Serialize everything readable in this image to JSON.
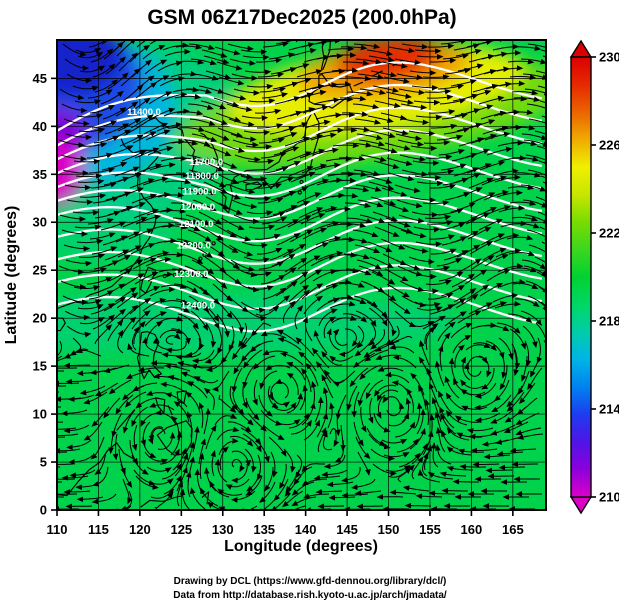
{
  "chart_data": {
    "type": "heatmap",
    "title": "GSM 06Z17Dec2025 (200.0hPa)",
    "xlabel": "Longitude (degrees)",
    "ylabel": "Latitude  (degrees)",
    "xlim": [
      110,
      169
    ],
    "ylim": [
      0,
      49
    ],
    "x_ticks": [
      110,
      115,
      120,
      125,
      130,
      135,
      140,
      145,
      150,
      155,
      160,
      165
    ],
    "y_ticks": [
      0,
      5,
      10,
      15,
      20,
      25,
      30,
      35,
      40,
      45
    ],
    "grid": true,
    "colorbar": {
      "ticks": [
        210,
        214,
        218,
        222,
        226,
        230
      ],
      "range": [
        210,
        230
      ],
      "orientation": "vertical",
      "colors_bottom_to_top": [
        "#dc00c8",
        "#8c00dc",
        "#5014e6",
        "#1e3cf0",
        "#0082f0",
        "#00b4e6",
        "#00cdaa",
        "#00d764",
        "#00d232",
        "#3cd71e",
        "#78dc00",
        "#c8e600",
        "#f0f000",
        "#f0aa00",
        "#eb6400",
        "#e62800",
        "#dc0000"
      ]
    },
    "shading_summary": {
      "background_value": 221,
      "cold_pool": {
        "lon": 112,
        "lat": 44,
        "min_value": 210,
        "location": "top-left"
      },
      "warm_ridge": {
        "lon": 149,
        "lat": 46,
        "max_value": 230,
        "location": "top-right"
      }
    },
    "contour_values": [
      11400,
      11500,
      11600,
      11700,
      11800,
      11900,
      12000,
      12100,
      12200,
      12300,
      12400
    ],
    "contour_labels": [
      {
        "value": "11400.0",
        "lon": 120.5,
        "lat": 41.5
      },
      {
        "value": "11700.0",
        "lon": 128.0,
        "lat": 36.3
      },
      {
        "value": "11800.0",
        "lon": 127.5,
        "lat": 34.8
      },
      {
        "value": "11900.0",
        "lon": 127.2,
        "lat": 33.2
      },
      {
        "value": "12000.0",
        "lon": 127.0,
        "lat": 31.6
      },
      {
        "value": "12100.0",
        "lon": 126.8,
        "lat": 29.8
      },
      {
        "value": "12200.0",
        "lon": 126.5,
        "lat": 27.6
      },
      {
        "value": "12300.0",
        "lon": 126.2,
        "lat": 24.6
      },
      {
        "value": "12400.0",
        "lon": 127.0,
        "lat": 21.3
      }
    ],
    "streamline_vortices": [
      {
        "lon": 137.0,
        "lat": 12.5,
        "spin": "cyclonic"
      },
      {
        "lon": 150.5,
        "lat": 11.0,
        "spin": "cyclonic"
      },
      {
        "lon": 122.5,
        "lat": 8.0,
        "spin": "cyclonic"
      },
      {
        "lon": 160.5,
        "lat": 14.5,
        "spin": "anticyclonic"
      },
      {
        "lon": 131.5,
        "lat": 4.5,
        "spin": "anticyclonic"
      },
      {
        "lon": 113.5,
        "lat": 44.5,
        "spin": "cyclonic"
      }
    ]
  },
  "credits": [
    "Drawing by DCL (https://www.gfd-dennou.org/library/dcl/)",
    "Data from http://database.rish.kyoto-u.ac.jp/arch/jmadata/"
  ]
}
